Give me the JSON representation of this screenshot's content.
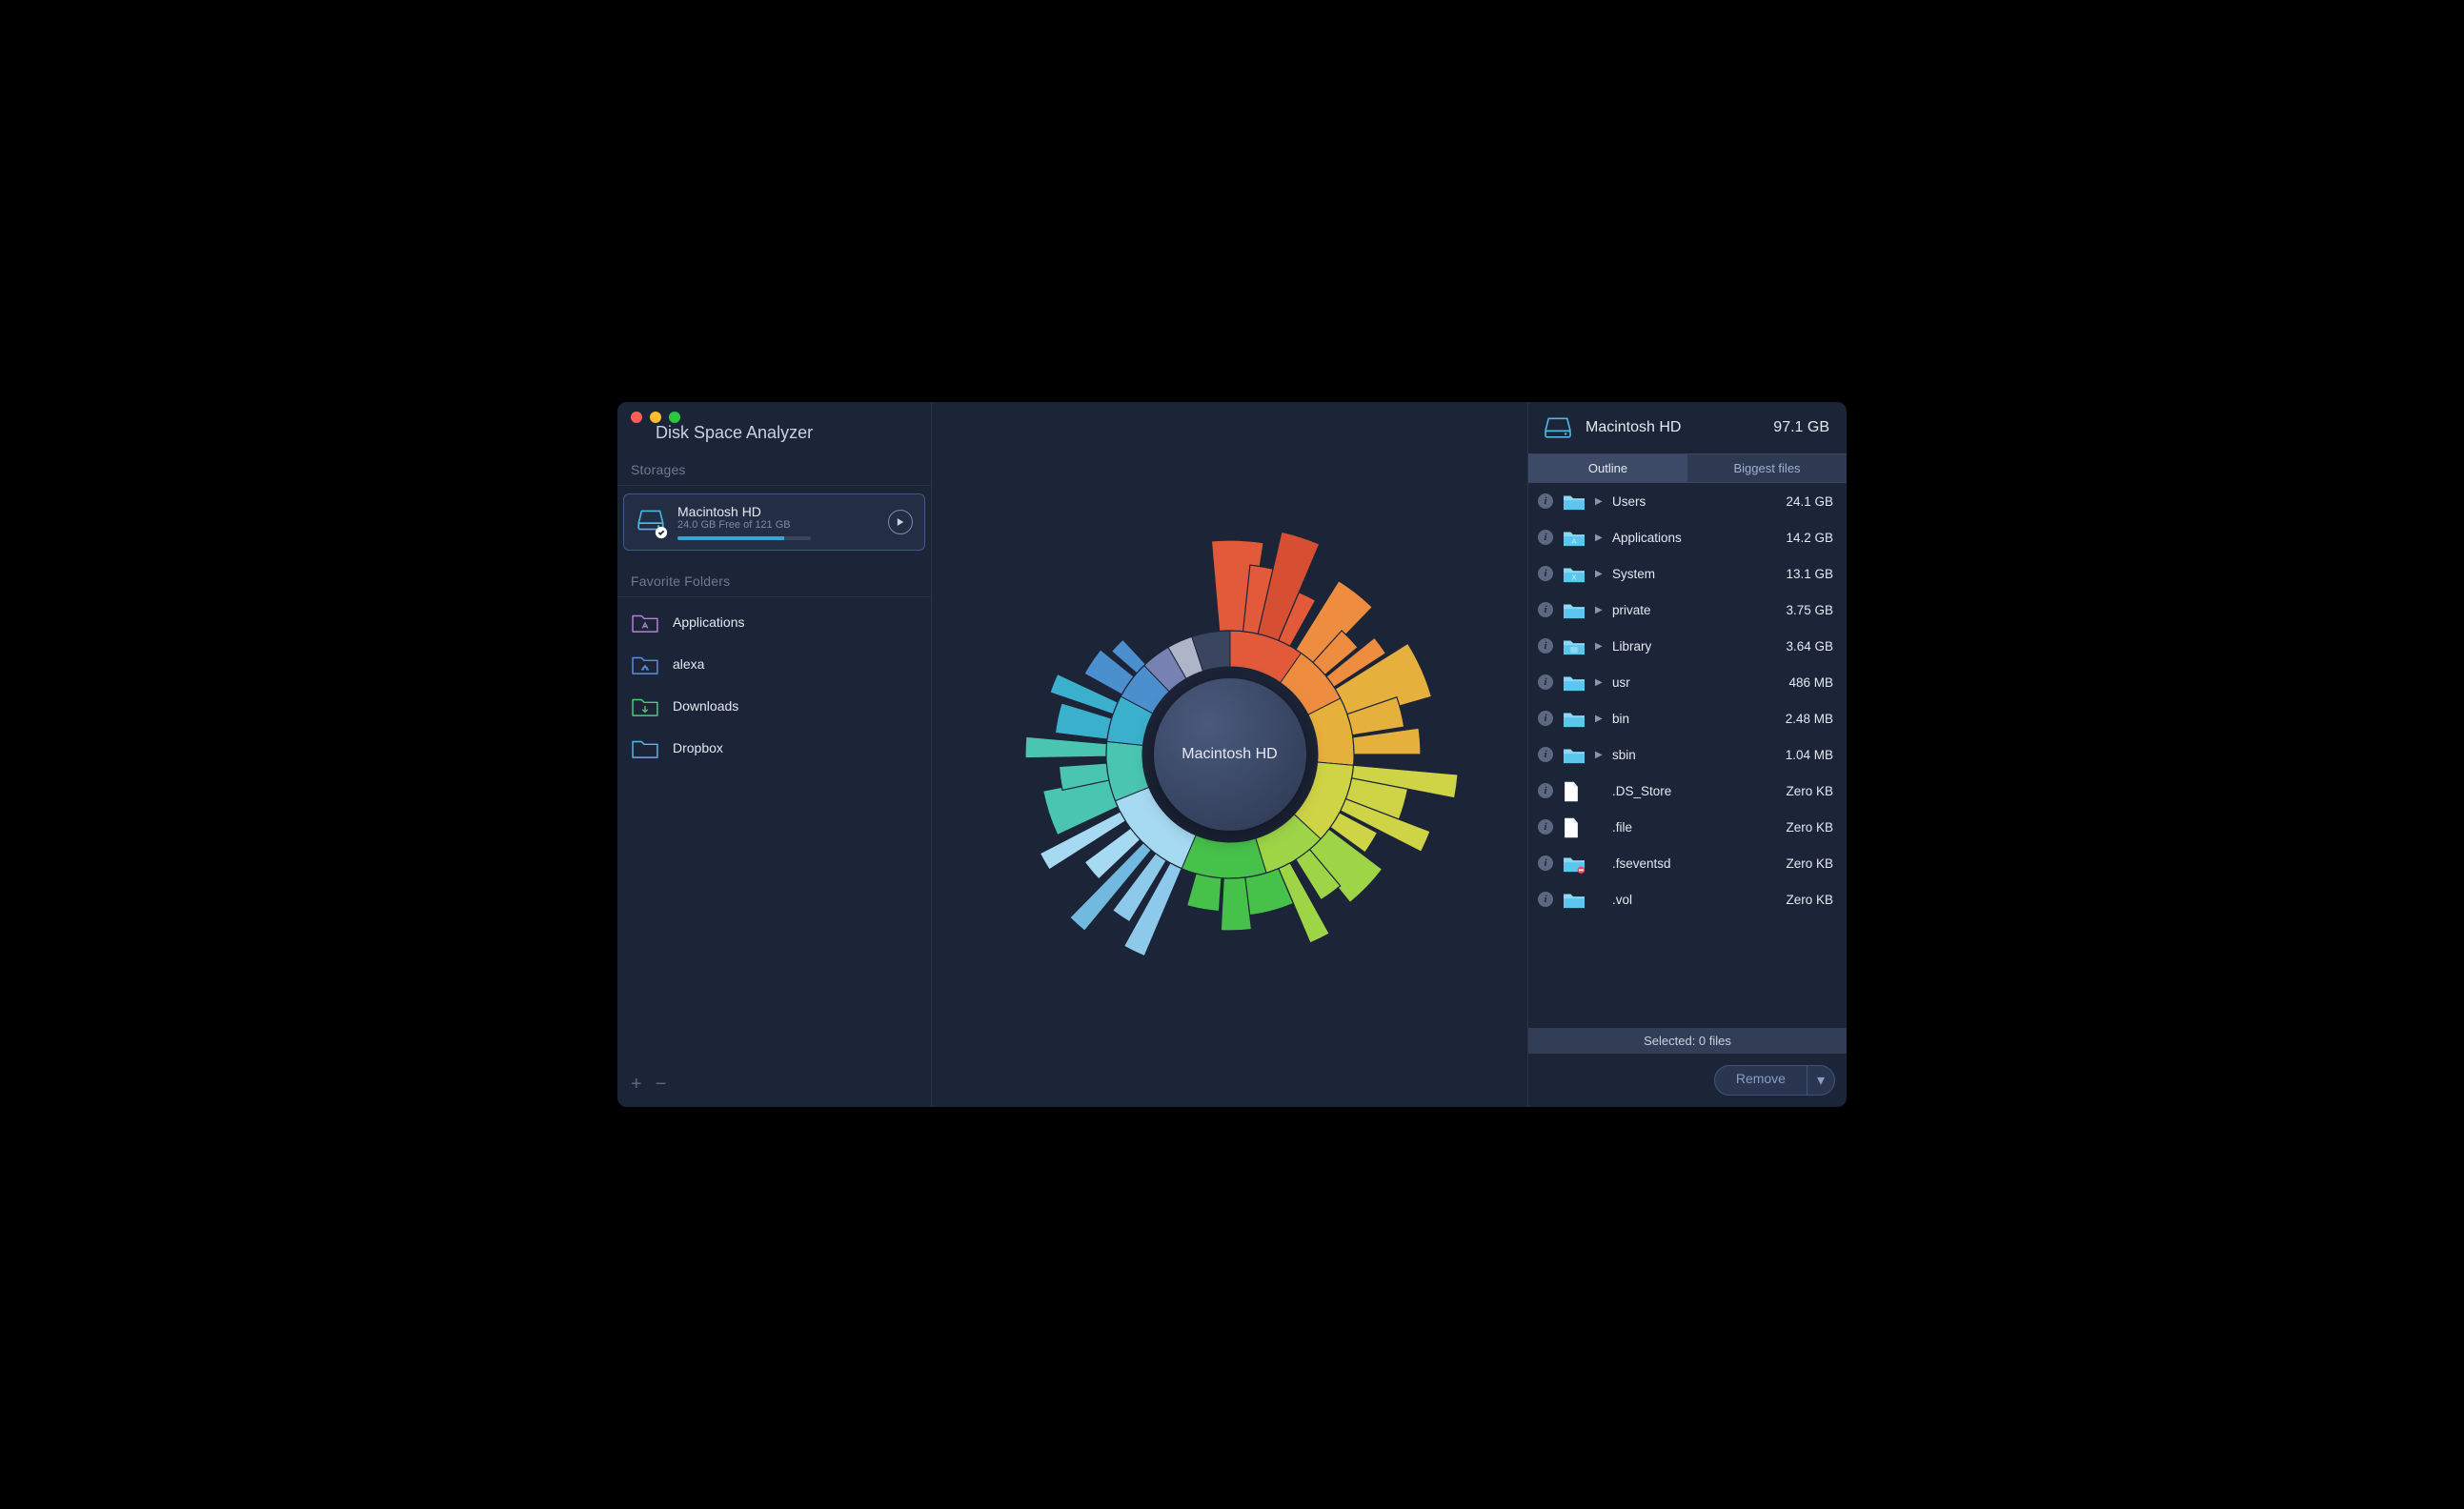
{
  "app": {
    "title": "Disk Space Analyzer"
  },
  "sidebar": {
    "storages_label": "Storages",
    "favorites_label": "Favorite Folders",
    "storages": [
      {
        "name": "Macintosh HD",
        "subtitle": "24.0 GB Free of 121 GB",
        "usage_pct": 80
      }
    ],
    "favorites": [
      {
        "label": "Applications",
        "icon": "apps",
        "color": "#b97ed6"
      },
      {
        "label": "alexa",
        "icon": "home",
        "color": "#5a8de6"
      },
      {
        "label": "Downloads",
        "icon": "download",
        "color": "#4fc97a"
      },
      {
        "label": "Dropbox",
        "icon": "folder",
        "color": "#5bb5e6"
      }
    ]
  },
  "right": {
    "disk_name": "Macintosh HD",
    "disk_size": "97.1 GB",
    "tabs": {
      "outline": "Outline",
      "biggest": "Biggest files",
      "active": "outline"
    },
    "items": [
      {
        "name": "Users",
        "size": "24.1 GB",
        "type": "folder",
        "expandable": true,
        "icon_overlay": ""
      },
      {
        "name": "Applications",
        "size": "14.2 GB",
        "type": "folder",
        "expandable": true,
        "icon_overlay": "A"
      },
      {
        "name": "System",
        "size": "13.1 GB",
        "type": "folder",
        "expandable": true,
        "icon_overlay": "X"
      },
      {
        "name": "private",
        "size": "3.75 GB",
        "type": "folder",
        "expandable": true,
        "icon_overlay": ""
      },
      {
        "name": "Library",
        "size": "3.64 GB",
        "type": "folder",
        "expandable": true,
        "icon_overlay": "lib"
      },
      {
        "name": "usr",
        "size": "486 MB",
        "type": "folder",
        "expandable": true,
        "icon_overlay": ""
      },
      {
        "name": "bin",
        "size": "2.48 MB",
        "type": "folder",
        "expandable": true,
        "icon_overlay": ""
      },
      {
        "name": "sbin",
        "size": "1.04 MB",
        "type": "folder",
        "expandable": true,
        "icon_overlay": ""
      },
      {
        "name": ".DS_Store",
        "size": "Zero KB",
        "type": "file",
        "expandable": false,
        "icon_overlay": ""
      },
      {
        "name": ".file",
        "size": "Zero KB",
        "type": "file",
        "expandable": false,
        "icon_overlay": ""
      },
      {
        "name": ".fseventsd",
        "size": "Zero KB",
        "type": "folder",
        "expandable": false,
        "icon_overlay": "",
        "blocked": true
      },
      {
        "name": ".vol",
        "size": "Zero KB",
        "type": "folder",
        "expandable": false,
        "icon_overlay": ""
      }
    ],
    "selected_text": "Selected: 0 files",
    "remove_label": "Remove"
  },
  "chart": {
    "center_label": "Macintosh HD",
    "inner_radius": 92,
    "ring_outer_radius": 130,
    "bg": "#1c2437",
    "ring_segments": [
      {
        "start": -90,
        "span": 35,
        "color": "#e35a3a"
      },
      {
        "start": -55,
        "span": 28,
        "color": "#ee8d3f"
      },
      {
        "start": -27,
        "span": 32,
        "color": "#e6b03c"
      },
      {
        "start": 5,
        "span": 38,
        "color": "#cfd446"
      },
      {
        "start": 43,
        "span": 30,
        "color": "#9ed547"
      },
      {
        "start": 73,
        "span": 40,
        "color": "#46c24a"
      },
      {
        "start": 113,
        "span": 45,
        "color": "#a6d9f2"
      },
      {
        "start": 158,
        "span": 28,
        "color": "#4ac6b0"
      },
      {
        "start": 186,
        "span": 22,
        "color": "#3ab0cc"
      },
      {
        "start": 208,
        "span": 18,
        "color": "#4b8fcf"
      },
      {
        "start": 226,
        "span": 14,
        "color": "#7882b2"
      },
      {
        "start": 240,
        "span": 12,
        "color": "#aeb5c9"
      },
      {
        "start": 252,
        "span": 18,
        "color": "#3a4560"
      }
    ],
    "spikes": [
      {
        "angle": -88,
        "len": 95,
        "w": 14,
        "color": "#e35a3a"
      },
      {
        "angle": -80,
        "len": 70,
        "w": 8,
        "color": "#e35a3a"
      },
      {
        "angle": -72,
        "len": 110,
        "w": 10,
        "color": "#d64f32"
      },
      {
        "angle": -64,
        "len": 55,
        "w": 6,
        "color": "#e35a3a"
      },
      {
        "angle": -52,
        "len": 85,
        "w": 12,
        "color": "#ee8d3f"
      },
      {
        "angle": -44,
        "len": 45,
        "w": 8,
        "color": "#ee8d3f"
      },
      {
        "angle": -36,
        "len": 65,
        "w": 6,
        "color": "#ee8d3f"
      },
      {
        "angle": -24,
        "len": 90,
        "w": 16,
        "color": "#e6b03c"
      },
      {
        "angle": -14,
        "len": 55,
        "w": 10,
        "color": "#e6b03c"
      },
      {
        "angle": -4,
        "len": 70,
        "w": 8,
        "color": "#e6b03c"
      },
      {
        "angle": 8,
        "len": 110,
        "w": 6,
        "color": "#cfd446"
      },
      {
        "angle": 16,
        "len": 60,
        "w": 10,
        "color": "#cfd446"
      },
      {
        "angle": 24,
        "len": 95,
        "w": 6,
        "color": "#cfd446"
      },
      {
        "angle": 32,
        "len": 45,
        "w": 8,
        "color": "#cfd446"
      },
      {
        "angle": 44,
        "len": 70,
        "w": 14,
        "color": "#9ed547"
      },
      {
        "angle": 54,
        "len": 50,
        "w": 8,
        "color": "#9ed547"
      },
      {
        "angle": 64,
        "len": 85,
        "w": 6,
        "color": "#9ed547"
      },
      {
        "angle": 76,
        "len": 40,
        "w": 18,
        "color": "#46c24a"
      },
      {
        "angle": 88,
        "len": 55,
        "w": 10,
        "color": "#46c24a"
      },
      {
        "angle": 100,
        "len": 35,
        "w": 12,
        "color": "#46c24a"
      },
      {
        "angle": 116,
        "len": 100,
        "w": 6,
        "color": "#8cc9ea"
      },
      {
        "angle": 124,
        "len": 75,
        "w": 6,
        "color": "#8cc9ea"
      },
      {
        "angle": 132,
        "len": 110,
        "w": 5,
        "color": "#72b9e0"
      },
      {
        "angle": 140,
        "len": 60,
        "w": 7,
        "color": "#a6d9f2"
      },
      {
        "angle": 150,
        "len": 95,
        "w": 5,
        "color": "#a6d9f2"
      },
      {
        "angle": 162,
        "len": 70,
        "w": 14,
        "color": "#4ac6b0"
      },
      {
        "angle": 172,
        "len": 50,
        "w": 8,
        "color": "#4ac6b0"
      },
      {
        "angle": 182,
        "len": 85,
        "w": 6,
        "color": "#4ac6b0"
      },
      {
        "angle": 192,
        "len": 55,
        "w": 10,
        "color": "#3ab0cc"
      },
      {
        "angle": 202,
        "len": 70,
        "w": 6,
        "color": "#3ab0cc"
      },
      {
        "angle": 214,
        "len": 45,
        "w": 10,
        "color": "#4b8fcf"
      },
      {
        "angle": 224,
        "len": 35,
        "w": 6,
        "color": "#4b8fcf"
      }
    ]
  }
}
